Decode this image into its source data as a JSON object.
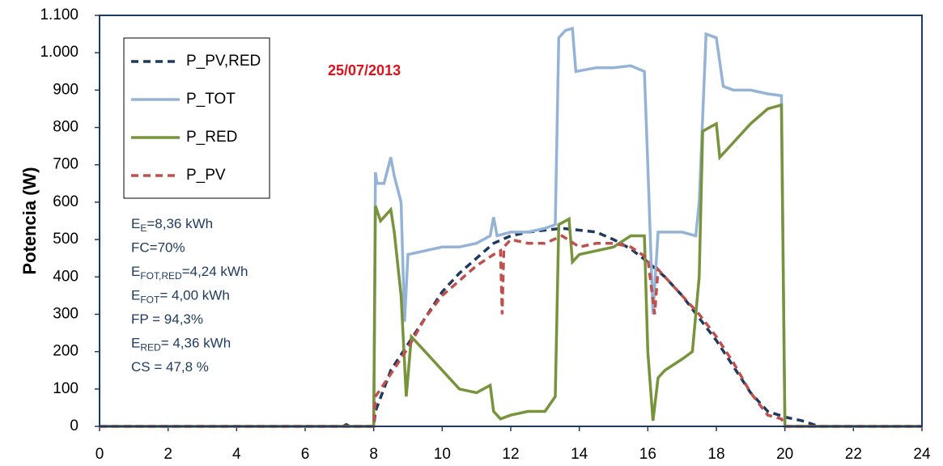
{
  "chart_data": {
    "type": "line",
    "y_label": "Potencia (W)",
    "xlim": [
      0,
      24
    ],
    "xticks": [
      0,
      2,
      4,
      6,
      8,
      10,
      12,
      14,
      16,
      18,
      20,
      22,
      24
    ],
    "ylim": [
      0,
      1100
    ],
    "yticks": [
      0,
      100,
      200,
      300,
      400,
      500,
      600,
      700,
      800,
      900,
      {
        "value": 1000,
        "label": "1.000"
      },
      {
        "value": 1100,
        "label": "1.100"
      }
    ],
    "date": "25/07/2013",
    "annotations": [
      {
        "main": "E",
        "sub": "E",
        "rest": "=8,36 kWh"
      },
      {
        "main": "FC=70%"
      },
      {
        "main": "E",
        "sub": "FOT,RED",
        "rest": "=4,24 kWh"
      },
      {
        "main": "E",
        "sub": "FOT",
        "rest": "= 4,00 kWh"
      },
      {
        "main": "FP = 94,3%"
      },
      {
        "main": "E",
        "sub": "RED",
        "rest": "= 4,36 kWh"
      },
      {
        "main": "CS = 47,8 %"
      }
    ],
    "series": [
      {
        "name": "P_PV,RED",
        "color": "#1f3a5f",
        "dash": true,
        "x": [
          0,
          7.1,
          7.2,
          7.3,
          8.0,
          8.05,
          8.5,
          9,
          9.5,
          10,
          10.5,
          11,
          11.5,
          12,
          12.5,
          13,
          13.5,
          14,
          14.5,
          15,
          15.5,
          16,
          16.5,
          17,
          17.5,
          18,
          18.5,
          19,
          19.5,
          20,
          20.5,
          21,
          24
        ],
        "values": [
          0,
          0,
          5,
          0,
          0,
          40,
          150,
          220,
          290,
          360,
          410,
          450,
          490,
          510,
          520,
          525,
          530,
          525,
          520,
          500,
          475,
          440,
          400,
          350,
          290,
          230,
          160,
          90,
          40,
          25,
          15,
          0,
          0
        ]
      },
      {
        "name": "P_TOT",
        "color": "#95b3d7",
        "dash": false,
        "x": [
          0,
          8.0,
          8.05,
          8.1,
          8.3,
          8.5,
          8.6,
          8.8,
          8.9,
          9.0,
          9.5,
          10,
          10.5,
          11,
          11.4,
          11.5,
          11.6,
          12,
          12.5,
          13,
          13.3,
          13.4,
          13.6,
          13.8,
          13.9,
          14.5,
          15,
          15.5,
          15.9,
          16.0,
          16.15,
          16.3,
          17,
          17.4,
          17.5,
          17.7,
          18,
          18.2,
          18.5,
          19,
          19.5,
          19.9,
          20,
          24
        ],
        "values": [
          0,
          0,
          680,
          650,
          650,
          720,
          670,
          600,
          280,
          460,
          470,
          480,
          480,
          490,
          510,
          560,
          510,
          520,
          520,
          530,
          540,
          1040,
          1060,
          1065,
          950,
          960,
          960,
          965,
          950,
          700,
          300,
          520,
          520,
          510,
          600,
          1050,
          1040,
          910,
          900,
          900,
          890,
          885,
          0,
          0
        ]
      },
      {
        "name": "P_RED",
        "color": "#77933c",
        "dash": false,
        "x": [
          0,
          8.0,
          8.05,
          8.2,
          8.5,
          8.6,
          8.8,
          8.95,
          9.1,
          9.5,
          10,
          10.5,
          11,
          11.4,
          11.5,
          11.7,
          12,
          12.5,
          13,
          13.3,
          13.4,
          13.7,
          13.8,
          14,
          14.5,
          15,
          15.5,
          15.9,
          16.0,
          16.15,
          16.3,
          16.5,
          17,
          17.3,
          17.5,
          17.6,
          17.8,
          18,
          18.1,
          18.5,
          19,
          19.5,
          19.9,
          20,
          24
        ],
        "values": [
          0,
          0,
          590,
          550,
          580,
          520,
          350,
          80,
          240,
          200,
          150,
          100,
          90,
          110,
          40,
          20,
          30,
          40,
          40,
          80,
          540,
          555,
          440,
          460,
          470,
          480,
          510,
          510,
          200,
          15,
          130,
          150,
          180,
          200,
          400,
          790,
          800,
          810,
          720,
          760,
          810,
          850,
          860,
          0,
          0
        ]
      },
      {
        "name": "P_PV",
        "color": "#c0504d",
        "dash": true,
        "x": [
          0,
          8.0,
          8.05,
          8.5,
          9,
          9.5,
          10,
          10.5,
          11,
          11.5,
          11.7,
          11.75,
          11.8,
          12,
          12.5,
          13,
          13.5,
          14,
          14.5,
          15,
          15.5,
          16,
          16.2,
          16.3,
          16.5,
          17,
          17.5,
          18,
          18.5,
          19,
          19.5,
          19.9,
          20,
          24
        ],
        "values": [
          0,
          0,
          80,
          140,
          210,
          290,
          350,
          390,
          430,
          460,
          470,
          300,
          480,
          500,
          490,
          490,
          510,
          480,
          490,
          490,
          480,
          450,
          300,
          420,
          400,
          350,
          300,
          240,
          170,
          90,
          30,
          20,
          0,
          0
        ]
      }
    ]
  }
}
